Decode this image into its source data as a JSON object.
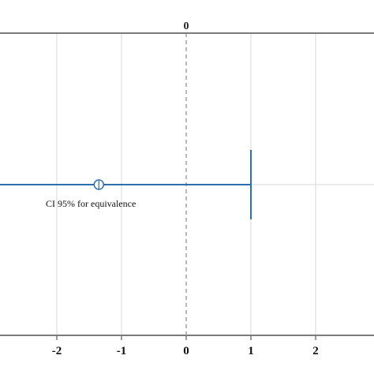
{
  "chart_data": {
    "type": "scatter",
    "title": "",
    "xlabel": "",
    "ylabel": "",
    "xlim": [
      -2.9,
      2.9
    ],
    "x_ticks": [
      -2,
      -1,
      0,
      1,
      2
    ],
    "x_tick_labels": [
      "-2",
      "-1",
      "0",
      "1",
      "2"
    ],
    "top_axis_label": "0",
    "reference_line_x": 0,
    "grid": true,
    "interval": {
      "lower": -2.9,
      "upper": 1,
      "point_estimate": -1.35,
      "label": "CI 95% for equivalence"
    },
    "colors": {
      "interval": "#2d6db0",
      "grid": "#d9d9d9",
      "axis": "#7a7a7a",
      "reference": "#8a8a8a"
    }
  }
}
